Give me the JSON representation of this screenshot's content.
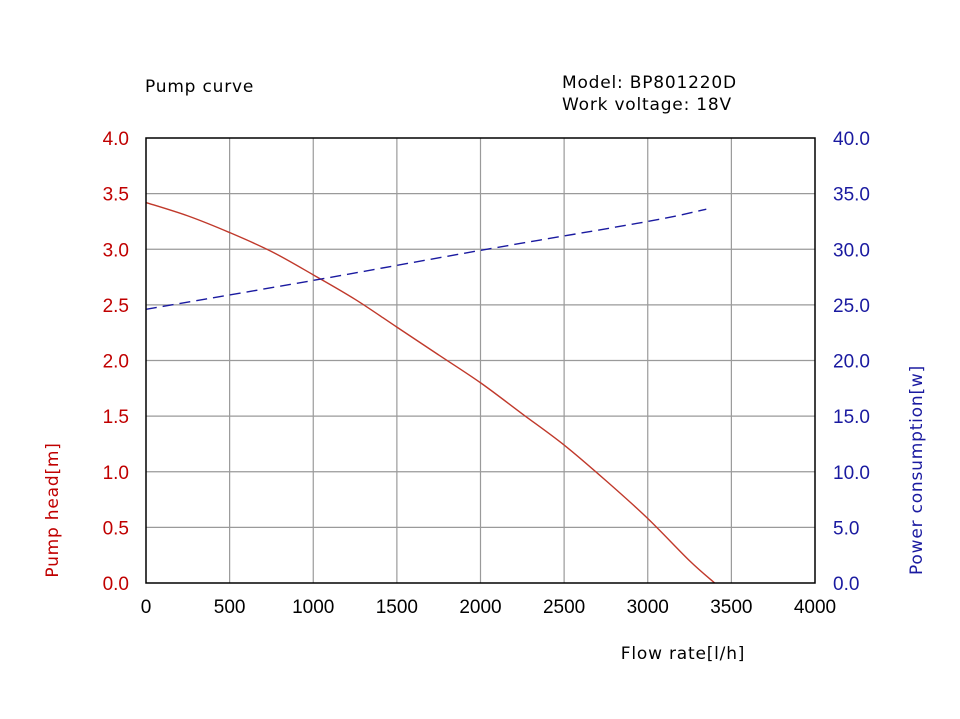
{
  "chart_data": {
    "type": "line",
    "title": "Pump curve",
    "info": {
      "model": "Model: BP801220D",
      "voltage": "Work voltage: 18V"
    },
    "xlabel": "Flow rate[l/h]",
    "ylabel_left": "Pump head[m]",
    "ylabel_right": "Power consumption[w]",
    "xlim": [
      0,
      4000
    ],
    "ylim_left": [
      0,
      4.0
    ],
    "ylim_right": [
      0,
      40.0
    ],
    "x_ticks": [
      "0",
      "500",
      "1000",
      "1500",
      "2000",
      "2500",
      "3000",
      "3500",
      "4000"
    ],
    "y_left_ticks": [
      "0.0",
      "0.5",
      "1.0",
      "1.5",
      "2.0",
      "2.5",
      "3.0",
      "3.5",
      "4.0"
    ],
    "y_right_ticks": [
      "0.0",
      "5.0",
      "10.0",
      "15.0",
      "20.0",
      "25.0",
      "30.0",
      "35.0",
      "40.0"
    ],
    "grid": true,
    "series": [
      {
        "axis": "left",
        "color": "#c0392b",
        "style": "solid",
        "points": [
          [
            0,
            3.42
          ],
          [
            250,
            3.3
          ],
          [
            500,
            3.15
          ],
          [
            750,
            2.98
          ],
          [
            1000,
            2.77
          ],
          [
            1250,
            2.55
          ],
          [
            1500,
            2.3
          ],
          [
            1750,
            2.05
          ],
          [
            2000,
            1.8
          ],
          [
            2250,
            1.52
          ],
          [
            2500,
            1.24
          ],
          [
            2750,
            0.92
          ],
          [
            3000,
            0.58
          ],
          [
            3250,
            0.2
          ],
          [
            3400,
            0.0
          ]
        ]
      },
      {
        "axis": "right",
        "color": "#1a1aa0",
        "style": "dashed",
        "points": [
          [
            0,
            24.6
          ],
          [
            1000,
            27.2
          ],
          [
            2000,
            29.9
          ],
          [
            3000,
            32.5
          ],
          [
            3350,
            33.6
          ]
        ]
      }
    ],
    "colors": {
      "left_axis": "#c00000",
      "right_axis": "#1a1aa0",
      "grid": "#9a9a9a",
      "frame": "#000000"
    }
  }
}
